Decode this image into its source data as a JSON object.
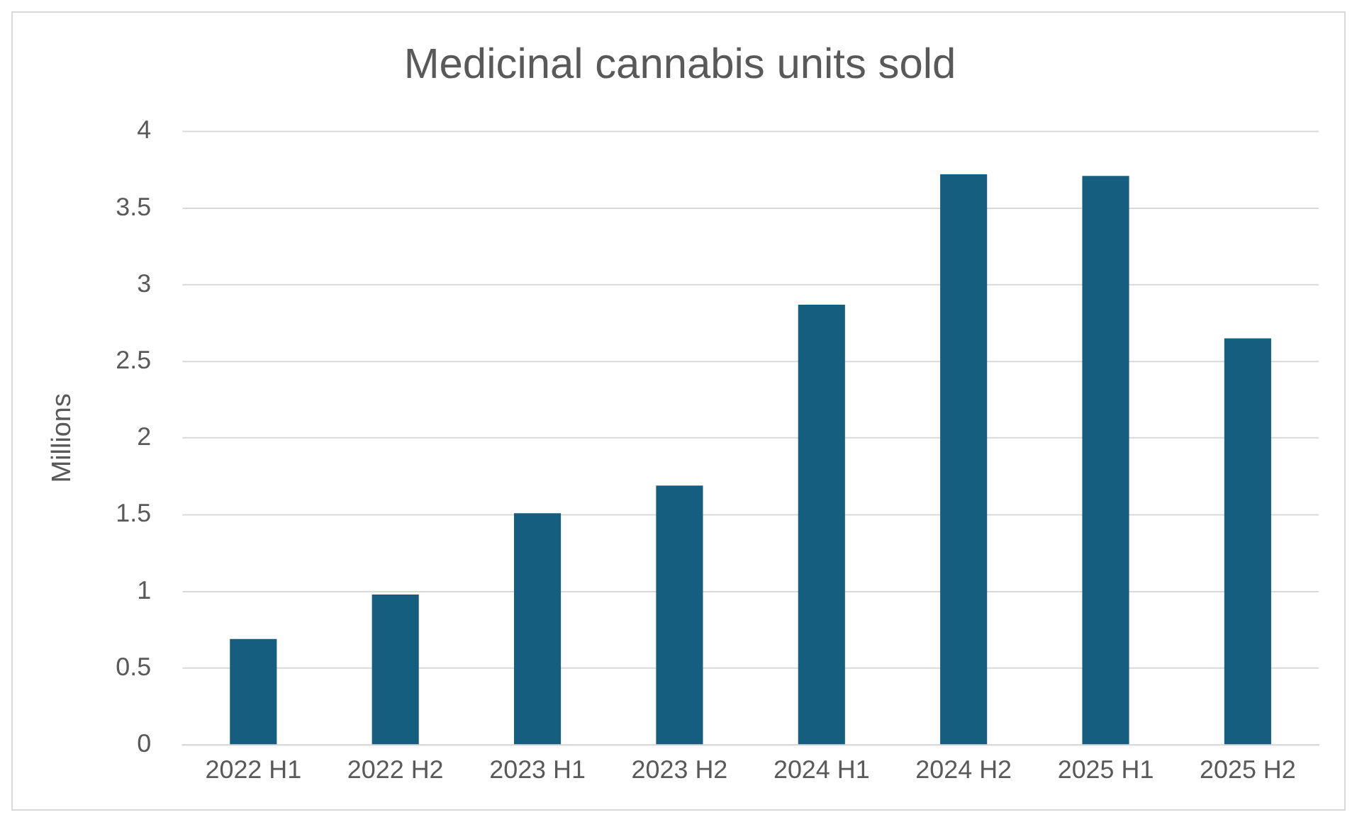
{
  "chart_data": {
    "type": "bar",
    "title": "Medicinal cannabis units sold",
    "ylabel": "Millions",
    "categories": [
      "2022 H1",
      "2022 H2",
      "2023 H1",
      "2023 H2",
      "2024 H1",
      "2024 H2",
      "2025 H1",
      "2025 H2"
    ],
    "values": [
      0.69,
      0.98,
      1.51,
      1.69,
      2.87,
      3.72,
      3.71,
      2.65
    ],
    "color": "#165e80",
    "ylim": [
      0,
      4
    ],
    "yticks": [
      0,
      0.5,
      1,
      1.5,
      2,
      2.5,
      3,
      3.5,
      4
    ],
    "grid": "y",
    "legend": false
  }
}
